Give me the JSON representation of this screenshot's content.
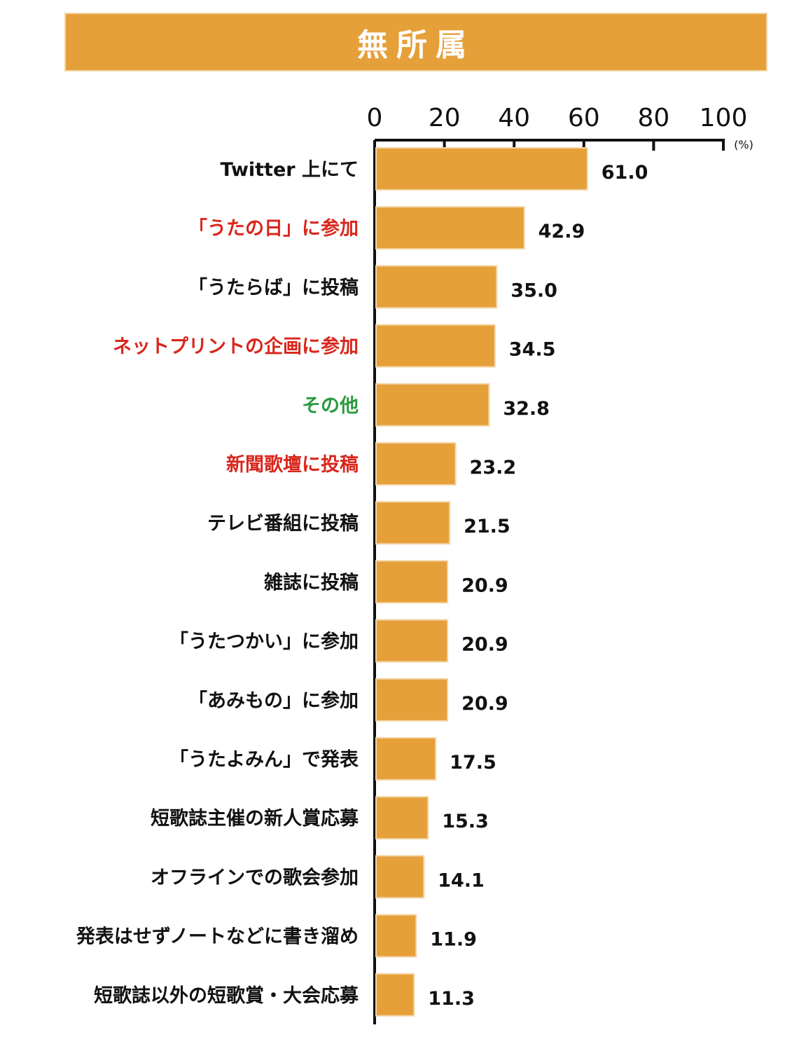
{
  "title": "無所属",
  "colors": {
    "bar": "#e6a03a",
    "bar_border": "#f3d6a8",
    "default_label": "#111111",
    "red_label": "#d9261c",
    "green_label": "#2a9a3f"
  },
  "chart_data": {
    "type": "bar",
    "orientation": "horizontal",
    "title": "無所属",
    "unit": "(%)",
    "xlim": [
      0,
      100
    ],
    "ticks": [
      0,
      20,
      40,
      60,
      80,
      100
    ],
    "tick_labels": [
      "0",
      "20",
      "40",
      "60",
      "80",
      "100"
    ],
    "categories": [
      "Twitter 上にて",
      "「うたの日」に参加",
      "「うたらば」に投稿",
      "ネットプリントの企画に参加",
      "その他",
      "新聞歌壇に投稿",
      "テレビ番組に投稿",
      "雑誌に投稿",
      "「うたつかい」に参加",
      "「あみもの」に参加",
      "「うたよみん」で発表",
      "短歌誌主催の新人賞応募",
      "オフラインでの歌会参加",
      "発表はせずノートなどに書き溜め",
      "短歌誌以外の短歌賞・大会応募"
    ],
    "values": [
      61.0,
      42.9,
      35.0,
      34.5,
      32.8,
      23.2,
      21.5,
      20.9,
      20.9,
      20.9,
      17.5,
      15.3,
      14.1,
      11.9,
      11.3
    ],
    "value_labels": [
      "61.0",
      "42.9",
      "35.0",
      "34.5",
      "32.8",
      "23.2",
      "21.5",
      "20.9",
      "20.9",
      "20.9",
      "17.5",
      "15.3",
      "14.1",
      "11.9",
      "11.3"
    ],
    "label_colors": [
      "default",
      "red",
      "default",
      "red",
      "green",
      "red",
      "default",
      "default",
      "default",
      "default",
      "default",
      "default",
      "default",
      "default",
      "default"
    ],
    "grid": false,
    "legend": "none"
  }
}
